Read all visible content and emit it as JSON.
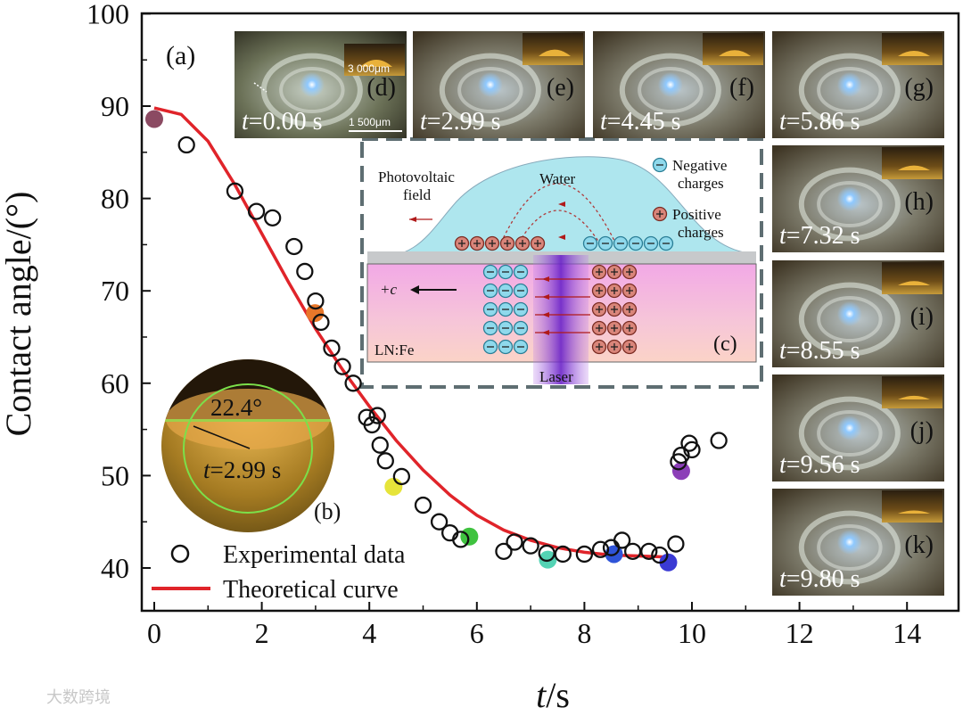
{
  "chart_data": {
    "type": "scatter",
    "title": "",
    "xlabel_italic": "t",
    "xlabel_unit": "/s",
    "ylabel": "Contact angle/(°)",
    "xlim": [
      -0.2,
      15
    ],
    "ylim": [
      38,
      100
    ],
    "xticks": [
      0,
      2,
      4,
      6,
      8,
      10,
      12,
      14
    ],
    "yticks": [
      40,
      50,
      60,
      70,
      80,
      90,
      100
    ],
    "panel_label": "(a)",
    "legend": {
      "placement": "bottom-left",
      "experimental": "Experimental data",
      "theoretical": "Theoretical curve"
    },
    "series": [
      {
        "name": "Experimental data",
        "marker": "open-circle",
        "points": [
          [
            0.6,
            85.8
          ],
          [
            1.5,
            80.8
          ],
          [
            1.9,
            78.6
          ],
          [
            2.2,
            77.9
          ],
          [
            2.6,
            74.8
          ],
          [
            2.8,
            72.1
          ],
          [
            3.0,
            68.9
          ],
          [
            3.1,
            66.6
          ],
          [
            3.3,
            63.8
          ],
          [
            3.5,
            61.8
          ],
          [
            3.7,
            60.0
          ],
          [
            3.95,
            56.3
          ],
          [
            4.05,
            55.5
          ],
          [
            4.15,
            56.5
          ],
          [
            4.2,
            53.3
          ],
          [
            4.3,
            51.6
          ],
          [
            4.6,
            49.9
          ],
          [
            5.0,
            46.8
          ],
          [
            5.3,
            45.0
          ],
          [
            5.5,
            43.8
          ],
          [
            5.7,
            43.1
          ],
          [
            6.5,
            41.8
          ],
          [
            6.7,
            42.8
          ],
          [
            7.0,
            42.4
          ],
          [
            7.3,
            41.6
          ],
          [
            7.6,
            41.5
          ],
          [
            8.0,
            41.5
          ],
          [
            8.3,
            42.0
          ],
          [
            8.5,
            42.2
          ],
          [
            8.7,
            43.0
          ],
          [
            8.9,
            41.8
          ],
          [
            9.2,
            41.8
          ],
          [
            9.4,
            41.4
          ],
          [
            9.7,
            42.6
          ],
          [
            9.75,
            51.5
          ],
          [
            9.8,
            52.2
          ],
          [
            9.95,
            53.5
          ],
          [
            10.0,
            52.8
          ],
          [
            10.5,
            53.8
          ]
        ]
      },
      {
        "name": "Theoretical curve",
        "color": "#e0242a",
        "points": [
          [
            0,
            89.8
          ],
          [
            0.5,
            89.1
          ],
          [
            1,
            86.2
          ],
          [
            1.5,
            81.5
          ],
          [
            2,
            76.2
          ],
          [
            2.5,
            70.9
          ],
          [
            3,
            65.9
          ],
          [
            3.5,
            61.5
          ],
          [
            4,
            57.5
          ],
          [
            4.5,
            53.8
          ],
          [
            5,
            50.6
          ],
          [
            5.5,
            47.9
          ],
          [
            6,
            45.7
          ],
          [
            6.5,
            44.1
          ],
          [
            7,
            43.0
          ],
          [
            7.5,
            42.2
          ],
          [
            8,
            41.7
          ],
          [
            8.5,
            41.4
          ],
          [
            9,
            41.3
          ],
          [
            9.5,
            41.2
          ]
        ]
      },
      {
        "name": "Highlighted snapshots",
        "marker": "filled-circle",
        "points": [
          {
            "x": 0.0,
            "y": 88.6,
            "color": "#8b4a62"
          },
          {
            "x": 2.99,
            "y": 67.6,
            "color": "#e8772a"
          },
          {
            "x": 4.45,
            "y": 48.8,
            "color": "#e6e43a"
          },
          {
            "x": 5.86,
            "y": 43.4,
            "color": "#3fc23f"
          },
          {
            "x": 7.32,
            "y": 40.9,
            "color": "#54d3b4"
          },
          {
            "x": 8.55,
            "y": 41.5,
            "color": "#2f54d8"
          },
          {
            "x": 9.56,
            "y": 40.6,
            "color": "#3a3ad4"
          },
          {
            "x": 9.8,
            "y": 50.5,
            "color": "#8c3fb8"
          }
        ]
      }
    ]
  },
  "photo_panels": [
    {
      "label": "(d)",
      "time": "=0.00 s",
      "scale1": "3 000μm",
      "scale2": "1 500μm"
    },
    {
      "label": "(e)",
      "time": "=2.99 s"
    },
    {
      "label": "(f)",
      "time": "=4.45 s"
    },
    {
      "label": "(g)",
      "time": "=5.86 s"
    },
    {
      "label": "(h)",
      "time": "=7.32 s"
    },
    {
      "label": "(i)",
      "time": "=8.55 s"
    },
    {
      "label": "(j)",
      "time": "=9.56 s"
    },
    {
      "label": "(k)",
      "time": "=9.80 s"
    }
  ],
  "time_prefix": "t",
  "inset_b": {
    "label": "(b)",
    "angle": "22.4°",
    "time": "=2.99 s"
  },
  "schematic": {
    "label": "(c)",
    "photovoltaic": "Photovoltaic",
    "field": "field",
    "water": "Water",
    "negative": "Negative",
    "negative2": "charges",
    "positive": "Positive",
    "positive2": "charges",
    "axis": "+c",
    "crystal": "LN:Fe",
    "laser": "Laser"
  },
  "watermark": "大数跨境"
}
